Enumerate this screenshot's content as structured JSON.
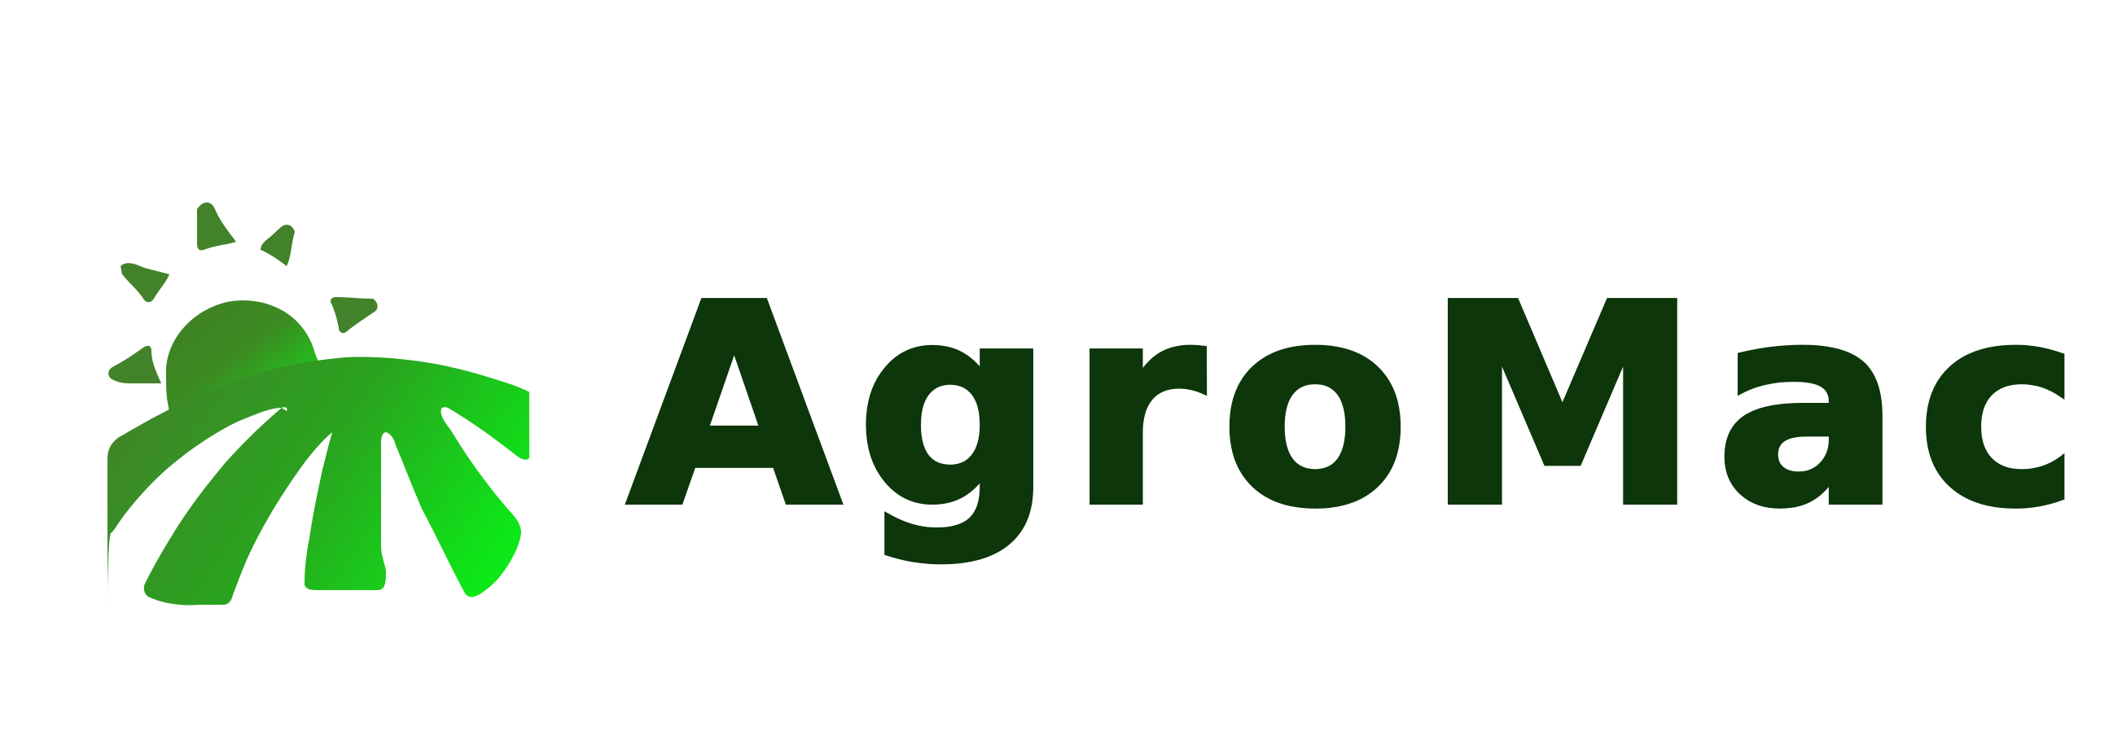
{
  "brand": {
    "name": "AgroMac"
  },
  "colors": {
    "wordmark": "#0d360b",
    "gradient_start": "#3f7f25",
    "gradient_end": "#0fe81a",
    "background": "#ffffff"
  },
  "icons": {
    "emblem": "sun-over-field-icon"
  }
}
